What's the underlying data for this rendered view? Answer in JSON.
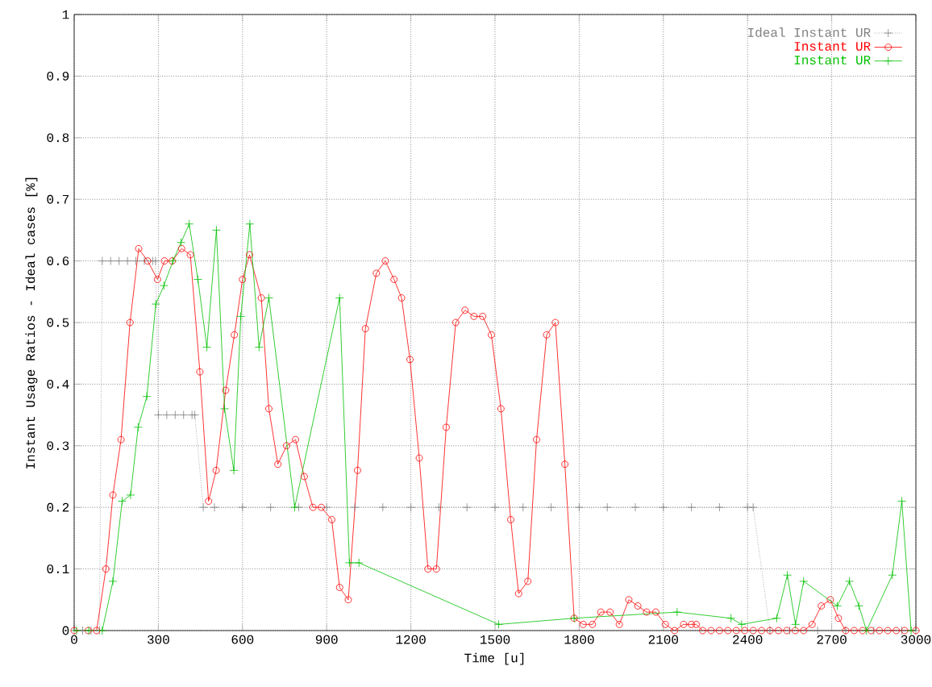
{
  "chart_data": {
    "type": "line",
    "xlabel": "Time [u]",
    "ylabel": "Instant Usage Ratios - Ideal cases [%]",
    "xlim": [
      0,
      3000
    ],
    "ylim": [
      0,
      1
    ],
    "xticks": [
      0,
      300,
      600,
      900,
      1200,
      1500,
      1800,
      2100,
      2400,
      2700,
      3000
    ],
    "yticks": [
      0,
      0.1,
      0.2,
      0.3,
      0.4,
      0.5,
      0.6,
      0.7,
      0.8,
      0.9,
      1
    ],
    "grid": true,
    "legend": "top right",
    "series": [
      {
        "name": "Ideal Instant UR",
        "color": "#808080",
        "line_style": "dotted",
        "marker": "cross",
        "x": [
          0,
          30,
          60,
          90,
          100,
          130,
          160,
          190,
          220,
          250,
          280,
          290,
          300,
          330,
          360,
          390,
          420,
          430,
          460,
          500,
          600,
          700,
          800,
          900,
          1000,
          1100,
          1200,
          1300,
          1400,
          1500,
          1600,
          1700,
          1800,
          1900,
          2000,
          2100,
          2200,
          2300,
          2400,
          2420,
          2480,
          2550,
          2650,
          2750,
          2850,
          2950,
          3000
        ],
        "values": [
          0,
          0,
          0,
          0,
          0.6,
          0.6,
          0.6,
          0.6,
          0.6,
          0.6,
          0.6,
          0.6,
          0.35,
          0.35,
          0.35,
          0.35,
          0.35,
          0.35,
          0.2,
          0.2,
          0.2,
          0.2,
          0.2,
          0.2,
          0.2,
          0.2,
          0.2,
          0.2,
          0.2,
          0.2,
          0.2,
          0.2,
          0.2,
          0.2,
          0.2,
          0.2,
          0.2,
          0.2,
          0.2,
          0.2,
          0,
          0,
          0,
          0,
          0,
          0,
          0
        ]
      },
      {
        "name": "Instant UR",
        "color": "#ff0000",
        "line_style": "solid",
        "marker": "circle",
        "x": [
          0,
          50,
          80,
          113,
          138,
          167,
          199,
          230,
          262,
          297,
          322,
          349,
          383,
          414,
          448,
          479,
          506,
          540,
          571,
          600,
          625,
          667,
          694,
          726,
          757,
          789,
          820,
          851,
          881,
          918,
          946,
          977,
          1010,
          1038,
          1077,
          1109,
          1140,
          1167,
          1197,
          1230,
          1261,
          1291,
          1326,
          1360,
          1393,
          1425,
          1456,
          1487,
          1521,
          1556,
          1584,
          1617,
          1648,
          1684,
          1715,
          1749,
          1782,
          1814,
          1847,
          1877,
          1910,
          1943,
          1977,
          2009,
          2040,
          2073,
          2107,
          2140,
          2172,
          2200,
          2217,
          2240,
          2270,
          2300,
          2330,
          2360,
          2390,
          2420,
          2450,
          2480,
          2510,
          2540,
          2570,
          2600,
          2630,
          2663,
          2695,
          2724,
          2750,
          2780,
          2810,
          2840,
          2870,
          2900,
          2930,
          2960,
          3000
        ],
        "values": [
          0,
          0,
          0,
          0.1,
          0.22,
          0.31,
          0.5,
          0.62,
          0.6,
          0.57,
          0.6,
          0.6,
          0.62,
          0.61,
          0.42,
          0.21,
          0.26,
          0.39,
          0.48,
          0.57,
          0.61,
          0.54,
          0.36,
          0.27,
          0.3,
          0.31,
          0.25,
          0.2,
          0.2,
          0.18,
          0.07,
          0.05,
          0.26,
          0.49,
          0.58,
          0.6,
          0.57,
          0.54,
          0.44,
          0.28,
          0.1,
          0.1,
          0.33,
          0.5,
          0.52,
          0.51,
          0.51,
          0.48,
          0.36,
          0.18,
          0.06,
          0.08,
          0.31,
          0.48,
          0.5,
          0.27,
          0.02,
          0.01,
          0.01,
          0.03,
          0.03,
          0.01,
          0.05,
          0.04,
          0.03,
          0.03,
          0.01,
          0,
          0.01,
          0.01,
          0.01,
          0,
          0,
          0,
          0,
          0,
          0,
          0,
          0,
          0,
          0,
          0,
          0,
          0,
          0.01,
          0.04,
          0.05,
          0.02,
          0,
          0,
          0,
          0,
          0,
          0,
          0,
          0,
          0
        ]
      },
      {
        "name": "Instant UR",
        "color": "#00c000",
        "line_style": "solid",
        "marker": "cross",
        "x": [
          8,
          52,
          100,
          138,
          171,
          201,
          228,
          259,
          291,
          320,
          352,
          381,
          410,
          441,
          473,
          507,
          536,
          569,
          594,
          626,
          659,
          694,
          786,
          946,
          981,
          1015,
          1513,
          1782,
          2149,
          2341,
          2379,
          2504,
          2542,
          2571,
          2600,
          2720,
          2763,
          2797,
          2824,
          2916,
          2950,
          2983
        ],
        "values": [
          0,
          0,
          0,
          0.08,
          0.21,
          0.22,
          0.33,
          0.38,
          0.53,
          0.56,
          0.6,
          0.63,
          0.66,
          0.57,
          0.46,
          0.65,
          0.36,
          0.26,
          0.51,
          0.66,
          0.46,
          0.54,
          0.2,
          0.54,
          0.11,
          0.11,
          0.01,
          0.02,
          0.03,
          0.02,
          0.01,
          0.02,
          0.09,
          0.01,
          0.08,
          0.04,
          0.08,
          0.04,
          0,
          0.09,
          0.21,
          0
        ]
      }
    ]
  }
}
